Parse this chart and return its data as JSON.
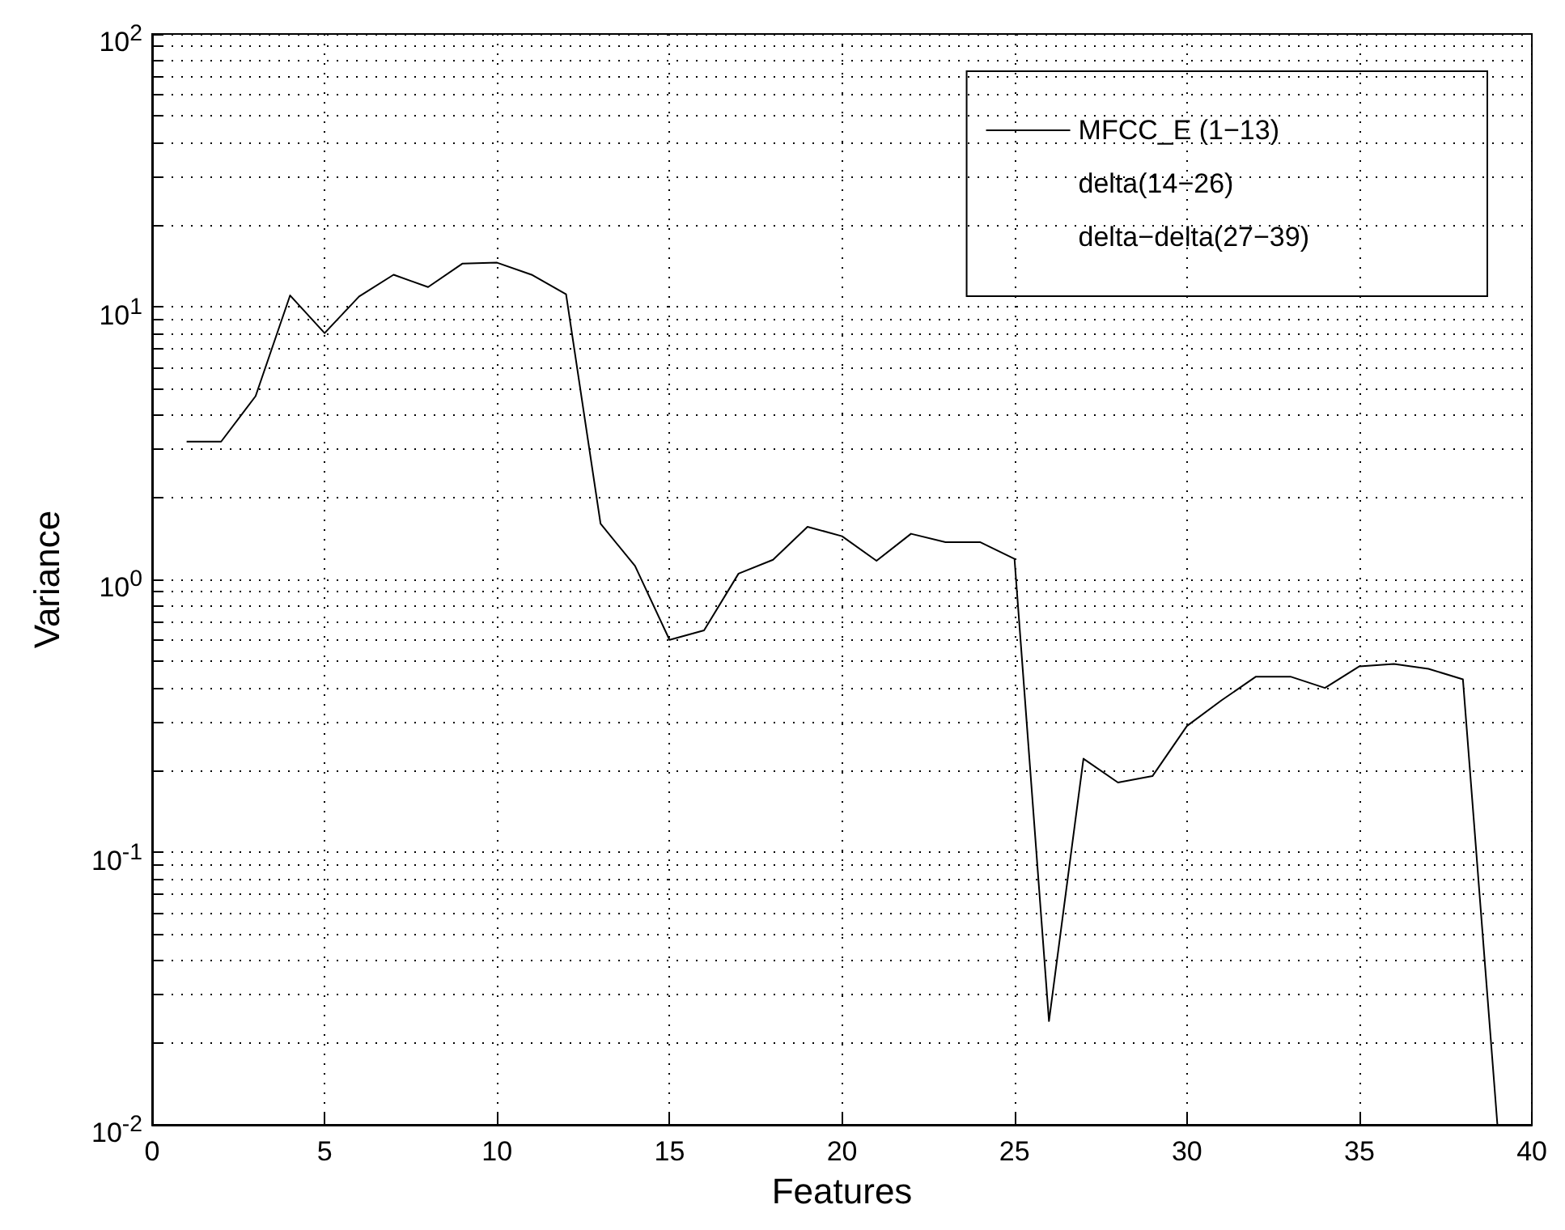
{
  "chart_data": {
    "type": "line",
    "xlabel": "Features",
    "ylabel": "Variance",
    "x": [
      1,
      2,
      3,
      4,
      5,
      6,
      7,
      8,
      9,
      10,
      11,
      12,
      13,
      14,
      15,
      16,
      17,
      18,
      19,
      20,
      21,
      22,
      23,
      24,
      25,
      26,
      27,
      28,
      29,
      30,
      31,
      32,
      33,
      34,
      35,
      36,
      37,
      38,
      39
    ],
    "series": [
      {
        "name": "MFCC_E (1−13)",
        "color": "#000000",
        "values": [
          3.2,
          3.2,
          4.7,
          11,
          8,
          10.9,
          13.1,
          11.8,
          14.4,
          14.5,
          13.1,
          11.1,
          1.6,
          1.12,
          0.6,
          0.65,
          1.05,
          1.18,
          1.56,
          1.44,
          1.17,
          1.47,
          1.37,
          1.37,
          1.19,
          0.024,
          0.22,
          0.18,
          0.19,
          0.29,
          0.36,
          0.44,
          0.44,
          0.4,
          0.48,
          0.49,
          0.47,
          0.43,
          0.01
        ]
      }
    ],
    "annotations": [
      "delta(14−26)",
      "delta−delta(27−39)"
    ],
    "log": "y",
    "xlim": [
      0,
      40
    ],
    "xticks": [
      0,
      5,
      10,
      15,
      20,
      25,
      30,
      35,
      40
    ],
    "ylim": [
      0.01,
      100
    ],
    "yticks": [
      {
        "value": 0.01,
        "label": "10$^{-2}$"
      },
      {
        "value": 0.02,
        "label": null
      },
      {
        "value": 0.03,
        "label": null
      },
      {
        "value": 0.04,
        "label": null
      },
      {
        "value": 0.05,
        "label": null
      },
      {
        "value": 0.06,
        "label": null
      },
      {
        "value": 0.07,
        "label": null
      },
      {
        "value": 0.08,
        "label": null
      },
      {
        "value": 0.09,
        "label": null
      },
      {
        "value": 0.1,
        "label": "10$^{-1}$"
      },
      {
        "value": 0.2,
        "label": null
      },
      {
        "value": 0.3,
        "label": null
      },
      {
        "value": 0.4,
        "label": null
      },
      {
        "value": 0.5,
        "label": null
      },
      {
        "value": 0.6,
        "label": null
      },
      {
        "value": 0.7,
        "label": null
      },
      {
        "value": 0.8,
        "label": null
      },
      {
        "value": 0.9,
        "label": null
      },
      {
        "value": 1,
        "label": "10$^{0}$"
      },
      {
        "value": 2,
        "label": null
      },
      {
        "value": 3,
        "label": null
      },
      {
        "value": 4,
        "label": null
      },
      {
        "value": 5,
        "label": null
      },
      {
        "value": 6,
        "label": null
      },
      {
        "value": 7,
        "label": null
      },
      {
        "value": 8,
        "label": null
      },
      {
        "value": 9,
        "label": null
      },
      {
        "value": 10,
        "label": "10$^{1}$"
      },
      {
        "value": 20,
        "label": null
      },
      {
        "value": 30,
        "label": null
      },
      {
        "value": 40,
        "label": null
      },
      {
        "value": 50,
        "label": null
      },
      {
        "value": 60,
        "label": null
      },
      {
        "value": 70,
        "label": null
      },
      {
        "value": 80,
        "label": null
      },
      {
        "value": 90,
        "label": null
      },
      {
        "value": 100,
        "label": "10$^{2}$"
      }
    ],
    "grid": true,
    "legend": "top right",
    "marker": "none",
    "line_style": "solid"
  }
}
